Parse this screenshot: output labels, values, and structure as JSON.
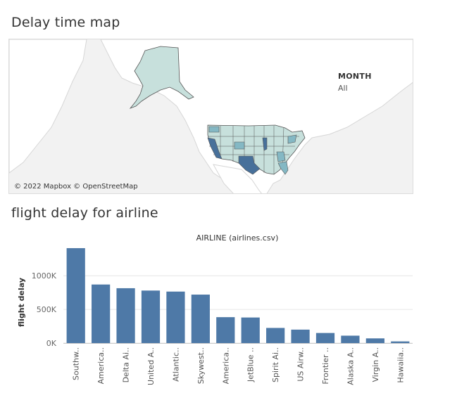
{
  "map_section": {
    "title": "Delay time map",
    "legend_title": "MONTH",
    "legend_value": "All",
    "attribution": "© 2022 Mapbox © OpenStreetMap"
  },
  "chart_section": {
    "title": "flight delay for airline"
  },
  "colors": {
    "bar": "#4e79a7",
    "state_light": "#c7e0dc",
    "state_mid": "#84b8c4",
    "state_dark": "#47709a",
    "land": "#ffffff",
    "water": "#eeeeee"
  },
  "chart_data": {
    "type": "bar",
    "title": "AIRLINE (airlines.csv)",
    "xlabel": "",
    "ylabel": "flight delay",
    "categories": [
      "Southw..",
      "America..",
      "Delta Ai..",
      "United A..",
      "Atlantic..",
      "Skywest..",
      "America..",
      "JetBlue ..",
      "Spirit Ai..",
      "US Airw..",
      "Frontier ..",
      "Alaska A..",
      "Virgin A..",
      "Hawaiia.."
    ],
    "values": [
      1410000,
      870000,
      815000,
      780000,
      765000,
      720000,
      385000,
      380000,
      225000,
      200000,
      150000,
      110000,
      70000,
      25000
    ],
    "ylim": [
      0,
      1420000
    ],
    "yticks": [
      0,
      500000,
      1000000
    ],
    "ytick_labels": [
      "0K",
      "500K",
      "1000K"
    ],
    "grid": true,
    "legend": "none"
  }
}
